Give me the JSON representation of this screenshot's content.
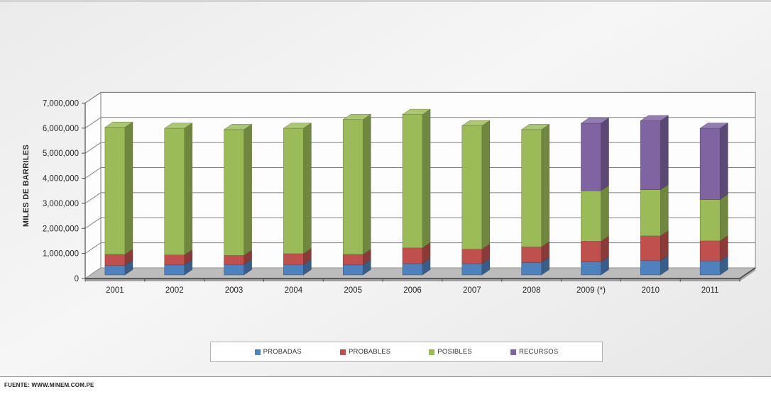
{
  "page": {
    "source_note": "FUENTE: WWW.MINEM.COM.PE"
  },
  "chart_data": {
    "type": "bar",
    "variant": "3d-stacked-column",
    "title": "",
    "xlabel": "",
    "ylabel": "MILES DE BARRILES",
    "ylim": [
      0,
      7000000
    ],
    "ytick_interval": 1000000,
    "ytick_labels": [
      "0",
      "1,000,000",
      "2,000,000",
      "3,000,000",
      "4,000,000",
      "5,000,000",
      "6,000,000",
      "7,000,000"
    ],
    "grid": true,
    "legend_position": "bottom",
    "categories": [
      "2001",
      "2002",
      "2003",
      "2004",
      "2005",
      "2006",
      "2007",
      "2008",
      "2009 (*)",
      "2010",
      "2011"
    ],
    "series": [
      {
        "name": "PROBADAS",
        "color": "#4F81BD",
        "values": [
          380000,
          400000,
          420000,
          420000,
          400000,
          450000,
          450000,
          500000,
          520000,
          570000,
          560000
        ]
      },
      {
        "name": "PROBABLES",
        "color": "#C0504D",
        "values": [
          440000,
          400000,
          360000,
          430000,
          420000,
          630000,
          580000,
          620000,
          830000,
          990000,
          800000
        ]
      },
      {
        "name": "POSIBLES",
        "color": "#9BBB59",
        "values": [
          5070000,
          5050000,
          5020000,
          5000000,
          5380000,
          5320000,
          4920000,
          4680000,
          2010000,
          1840000,
          1650000
        ]
      },
      {
        "name": "RECURSOS",
        "color": "#8064A2",
        "values": [
          0,
          0,
          0,
          0,
          0,
          0,
          0,
          0,
          2690000,
          2750000,
          2840000
        ]
      }
    ]
  }
}
